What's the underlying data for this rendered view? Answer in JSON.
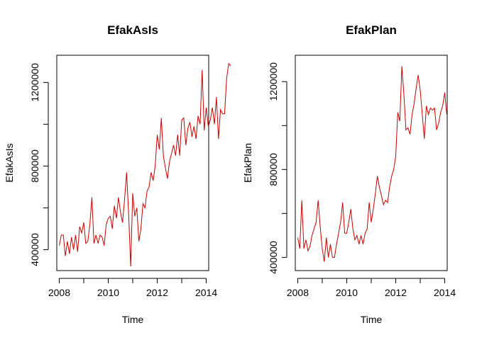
{
  "chart_data": [
    {
      "type": "line",
      "title": "EfakAsIs",
      "xlabel": "Time",
      "ylabel": "EfakAsIs",
      "xlim": [
        2007.9,
        2014.1
      ],
      "ylim": [
        300000,
        1330000
      ],
      "xticks": [
        2008,
        2010,
        2012,
        2014
      ],
      "yticks": [
        400000,
        800000,
        1200000
      ],
      "series": [
        {
          "color": "#cc0000",
          "x_start": 2008.0,
          "x_step": 0.08333,
          "values": [
            420000,
            470000,
            470000,
            370000,
            440000,
            380000,
            460000,
            400000,
            470000,
            390000,
            510000,
            480000,
            530000,
            430000,
            440000,
            520000,
            650000,
            430000,
            470000,
            430000,
            470000,
            460000,
            420000,
            520000,
            550000,
            560000,
            500000,
            610000,
            550000,
            650000,
            580000,
            530000,
            640000,
            770000,
            570000,
            320000,
            670000,
            560000,
            600000,
            440000,
            500000,
            620000,
            600000,
            680000,
            700000,
            770000,
            730000,
            800000,
            950000,
            880000,
            1030000,
            850000,
            790000,
            740000,
            820000,
            860000,
            900000,
            850000,
            950000,
            850000,
            1020000,
            1030000,
            900000,
            980000,
            1010000,
            940000,
            990000,
            930000,
            1040000,
            1000000,
            1260000,
            970000,
            1080000,
            990000,
            1020000,
            1080000,
            1000000,
            1130000,
            930000,
            1070000,
            1050000,
            1050000,
            1220000,
            1290000,
            1280000
          ]
        }
      ]
    },
    {
      "type": "line",
      "title": "EfakPlan",
      "xlabel": "Time",
      "ylabel": "EfakPlan",
      "xlim": [
        2007.9,
        2014.1
      ],
      "ylim": [
        340000,
        1320000
      ],
      "xticks": [
        2008,
        2010,
        2012,
        2014
      ],
      "yticks": [
        400000,
        800000,
        1200000
      ],
      "series": [
        {
          "color": "#cc0000",
          "x_start": 2008.0,
          "x_step": 0.08333,
          "values": [
            490000,
            440000,
            660000,
            440000,
            480000,
            430000,
            450000,
            500000,
            530000,
            560000,
            660000,
            540000,
            440000,
            380000,
            490000,
            400000,
            460000,
            400000,
            400000,
            460000,
            510000,
            560000,
            650000,
            510000,
            510000,
            560000,
            620000,
            530000,
            480000,
            500000,
            460000,
            500000,
            460000,
            510000,
            530000,
            650000,
            560000,
            620000,
            690000,
            770000,
            720000,
            680000,
            640000,
            660000,
            650000,
            720000,
            770000,
            800000,
            860000,
            1060000,
            1020000,
            1270000,
            1140000,
            980000,
            990000,
            960000,
            1050000,
            1100000,
            1170000,
            1230000,
            1160000,
            1050000,
            940000,
            1090000,
            1050000,
            1080000,
            1070000,
            1080000,
            980000,
            1010000,
            1060000,
            1090000,
            1150000,
            1050000
          ]
        }
      ]
    }
  ]
}
